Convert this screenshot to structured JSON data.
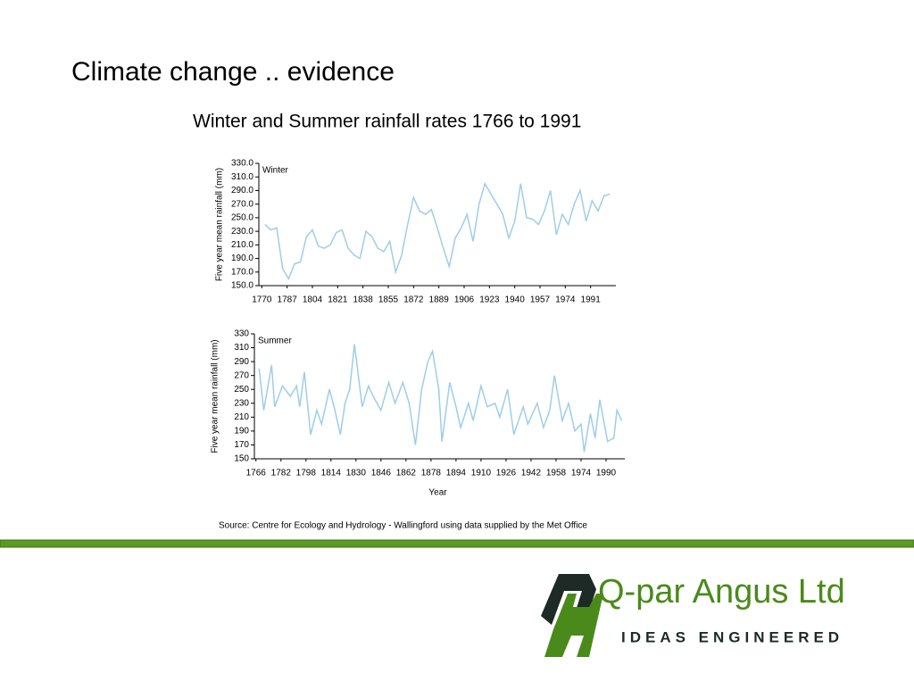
{
  "title": "Climate change .. evidence",
  "subtitle": "Winter and Summer rainfall rates 1766 to 1991",
  "chart_data": [
    {
      "type": "line",
      "title": "Winter",
      "ylabel": "Five year mean rainfall (mm)",
      "xlim": [
        1768,
        2008
      ],
      "xticks": [
        1770,
        1787,
        1804,
        1821,
        1838,
        1855,
        1872,
        1889,
        1906,
        1923,
        1940,
        1957,
        1974,
        1991
      ],
      "ylim": [
        150,
        330
      ],
      "yticks": [
        {
          "value": 150,
          "label": "150.0"
        },
        {
          "value": 170,
          "label": "170.0"
        },
        {
          "value": 190,
          "label": "190.0"
        },
        {
          "value": 210,
          "label": "210.0"
        },
        {
          "value": 230,
          "label": "230.0"
        },
        {
          "value": 250,
          "label": "250.0"
        },
        {
          "value": 270,
          "label": "270.0"
        },
        {
          "value": 290,
          "label": "290.0"
        },
        {
          "value": 310,
          "label": "310.0"
        },
        {
          "value": 330,
          "label": "330.0"
        }
      ],
      "color": "#9ecdea",
      "x": [
        1772,
        1776,
        1780,
        1784,
        1788,
        1792,
        1796,
        1800,
        1804,
        1808,
        1812,
        1816,
        1820,
        1824,
        1828,
        1832,
        1836,
        1840,
        1844,
        1848,
        1852,
        1856,
        1860,
        1864,
        1868,
        1872,
        1876,
        1880,
        1884,
        1888,
        1892,
        1896,
        1900,
        1904,
        1908,
        1912,
        1916,
        1920,
        1924,
        1928,
        1932,
        1936,
        1940,
        1944,
        1948,
        1952,
        1956,
        1960,
        1964,
        1968,
        1972,
        1976,
        1980,
        1984,
        1988,
        1992,
        1996,
        2000,
        2004
      ],
      "values": [
        240,
        232,
        235,
        175,
        160,
        182,
        185,
        222,
        232,
        208,
        205,
        210,
        228,
        232,
        205,
        195,
        190,
        230,
        222,
        205,
        200,
        215,
        170,
        195,
        240,
        280,
        260,
        255,
        262,
        235,
        205,
        178,
        220,
        235,
        255,
        215,
        270,
        300,
        285,
        270,
        255,
        220,
        245,
        300,
        250,
        248,
        240,
        260,
        290,
        225,
        255,
        240,
        270,
        290,
        245,
        275,
        260,
        282,
        285
      ]
    },
    {
      "type": "line",
      "title": "Summer",
      "ylabel": "Five year mean rainfall (mm)",
      "xlabel": "Year",
      "xlim": [
        1765,
        2002
      ],
      "xticks": [
        1766,
        1782,
        1798,
        1814,
        1830,
        1846,
        1862,
        1878,
        1894,
        1910,
        1926,
        1942,
        1958,
        1974,
        1990
      ],
      "ylim": [
        150,
        330
      ],
      "yticks": [
        150,
        170,
        190,
        210,
        230,
        250,
        270,
        290,
        310,
        330
      ],
      "color": "#9ecdea",
      "x": [
        1768,
        1771,
        1776,
        1778,
        1783,
        1788,
        1792,
        1794,
        1797,
        1801,
        1805,
        1808,
        1813,
        1816,
        1820,
        1823,
        1826,
        1829,
        1834,
        1838,
        1841,
        1846,
        1851,
        1855,
        1860,
        1864,
        1868,
        1872,
        1876,
        1879,
        1883,
        1885,
        1890,
        1894,
        1897,
        1902,
        1905,
        1910,
        1914,
        1919,
        1922,
        1927,
        1931,
        1937,
        1940,
        1946,
        1950,
        1954,
        1957,
        1962,
        1966,
        1970,
        1974,
        1976,
        1980,
        1983,
        1986,
        1991,
        1995,
        1997,
        2000
      ],
      "values": [
        280,
        220,
        285,
        225,
        255,
        240,
        255,
        225,
        275,
        185,
        220,
        200,
        250,
        225,
        185,
        230,
        250,
        315,
        225,
        255,
        240,
        220,
        260,
        230,
        260,
        230,
        170,
        250,
        290,
        305,
        250,
        175,
        260,
        225,
        195,
        230,
        205,
        255,
        225,
        230,
        210,
        250,
        185,
        225,
        200,
        230,
        195,
        220,
        270,
        205,
        230,
        190,
        200,
        160,
        215,
        180,
        235,
        175,
        180,
        220,
        205
      ]
    }
  ],
  "source": "Source:  Centre for Ecology and Hydrology - Wallingford using data supplied by the Met Office",
  "logo": {
    "name": "Q-par Angus Ltd",
    "tagline": "IDEAS ENGINEERED"
  }
}
